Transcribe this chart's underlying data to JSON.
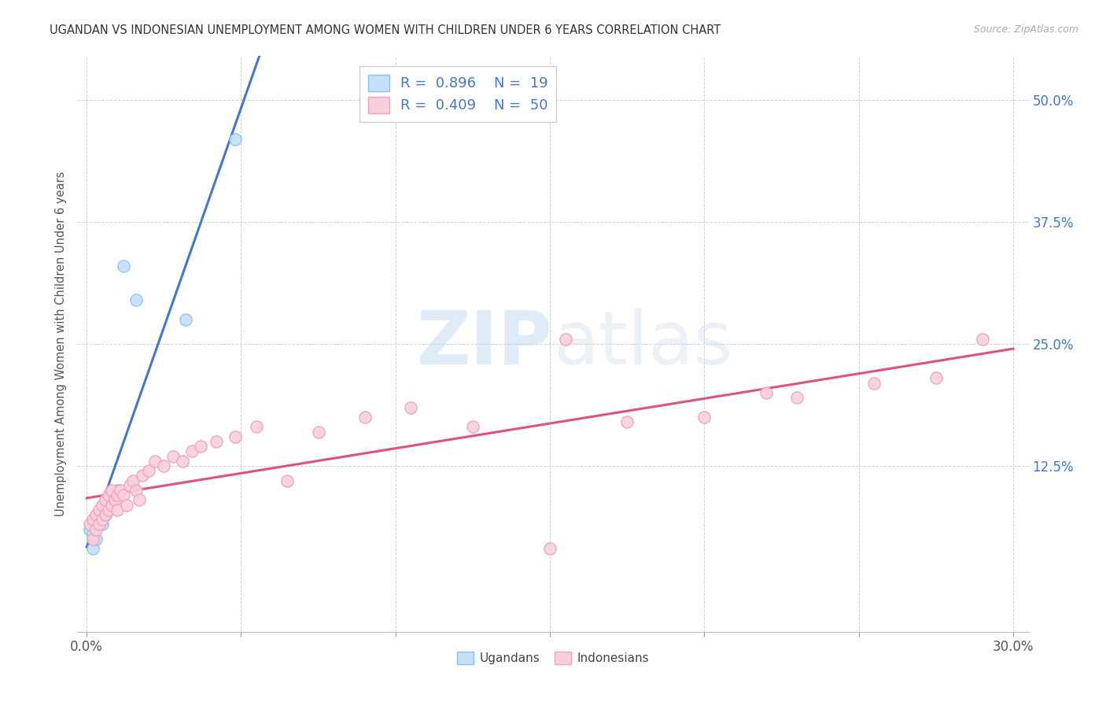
{
  "title": "UGANDAN VS INDONESIAN UNEMPLOYMENT AMONG WOMEN WITH CHILDREN UNDER 6 YEARS CORRELATION CHART",
  "source": "Source: ZipAtlas.com",
  "ylabel": "Unemployment Among Women with Children Under 6 years",
  "yaxis_labels": [
    "12.5%",
    "25.0%",
    "37.5%",
    "50.0%"
  ],
  "yaxis_values": [
    0.125,
    0.25,
    0.375,
    0.5
  ],
  "xlim": [
    -0.003,
    0.305
  ],
  "ylim": [
    -0.045,
    0.545
  ],
  "ugandan_R": 0.896,
  "ugandan_N": 19,
  "indonesian_R": 0.409,
  "indonesian_N": 50,
  "ugandan_color": "#89c0f0",
  "ugandan_fill": "#c5dff8",
  "indonesian_color": "#f0a0b8",
  "indonesian_fill": "#f8d0db",
  "trend_blue": "#4477cc",
  "trend_pink": "#e05080",
  "grid_color": "#cccccc",
  "title_color": "#333333",
  "source_color": "#aaaaaa",
  "watermark_color": "#c8dff0",
  "ugandan_x": [
    0.001,
    0.002,
    0.002,
    0.003,
    0.003,
    0.004,
    0.005,
    0.005,
    0.006,
    0.006,
    0.007,
    0.007,
    0.008,
    0.009,
    0.01,
    0.012,
    0.016,
    0.032,
    0.048
  ],
  "ugandan_y": [
    0.06,
    0.055,
    0.04,
    0.07,
    0.05,
    0.075,
    0.065,
    0.08,
    0.075,
    0.085,
    0.08,
    0.09,
    0.09,
    0.095,
    0.1,
    0.33,
    0.295,
    0.275,
    0.46
  ],
  "indonesian_x": [
    0.001,
    0.002,
    0.002,
    0.003,
    0.003,
    0.004,
    0.004,
    0.005,
    0.005,
    0.006,
    0.006,
    0.007,
    0.007,
    0.008,
    0.008,
    0.009,
    0.01,
    0.01,
    0.011,
    0.012,
    0.013,
    0.014,
    0.015,
    0.016,
    0.017,
    0.018,
    0.02,
    0.022,
    0.025,
    0.028,
    0.031,
    0.034,
    0.037,
    0.042,
    0.048,
    0.055,
    0.065,
    0.075,
    0.09,
    0.105,
    0.125,
    0.15,
    0.175,
    0.2,
    0.23,
    0.255,
    0.275,
    0.29,
    0.155,
    0.22
  ],
  "indonesian_y": [
    0.065,
    0.07,
    0.05,
    0.075,
    0.06,
    0.08,
    0.065,
    0.085,
    0.07,
    0.09,
    0.075,
    0.08,
    0.095,
    0.085,
    0.1,
    0.09,
    0.095,
    0.08,
    0.1,
    0.095,
    0.085,
    0.105,
    0.11,
    0.1,
    0.09,
    0.115,
    0.12,
    0.13,
    0.125,
    0.135,
    0.13,
    0.14,
    0.145,
    0.15,
    0.155,
    0.165,
    0.11,
    0.16,
    0.175,
    0.185,
    0.165,
    0.04,
    0.17,
    0.175,
    0.195,
    0.21,
    0.215,
    0.255,
    0.255,
    0.2
  ]
}
